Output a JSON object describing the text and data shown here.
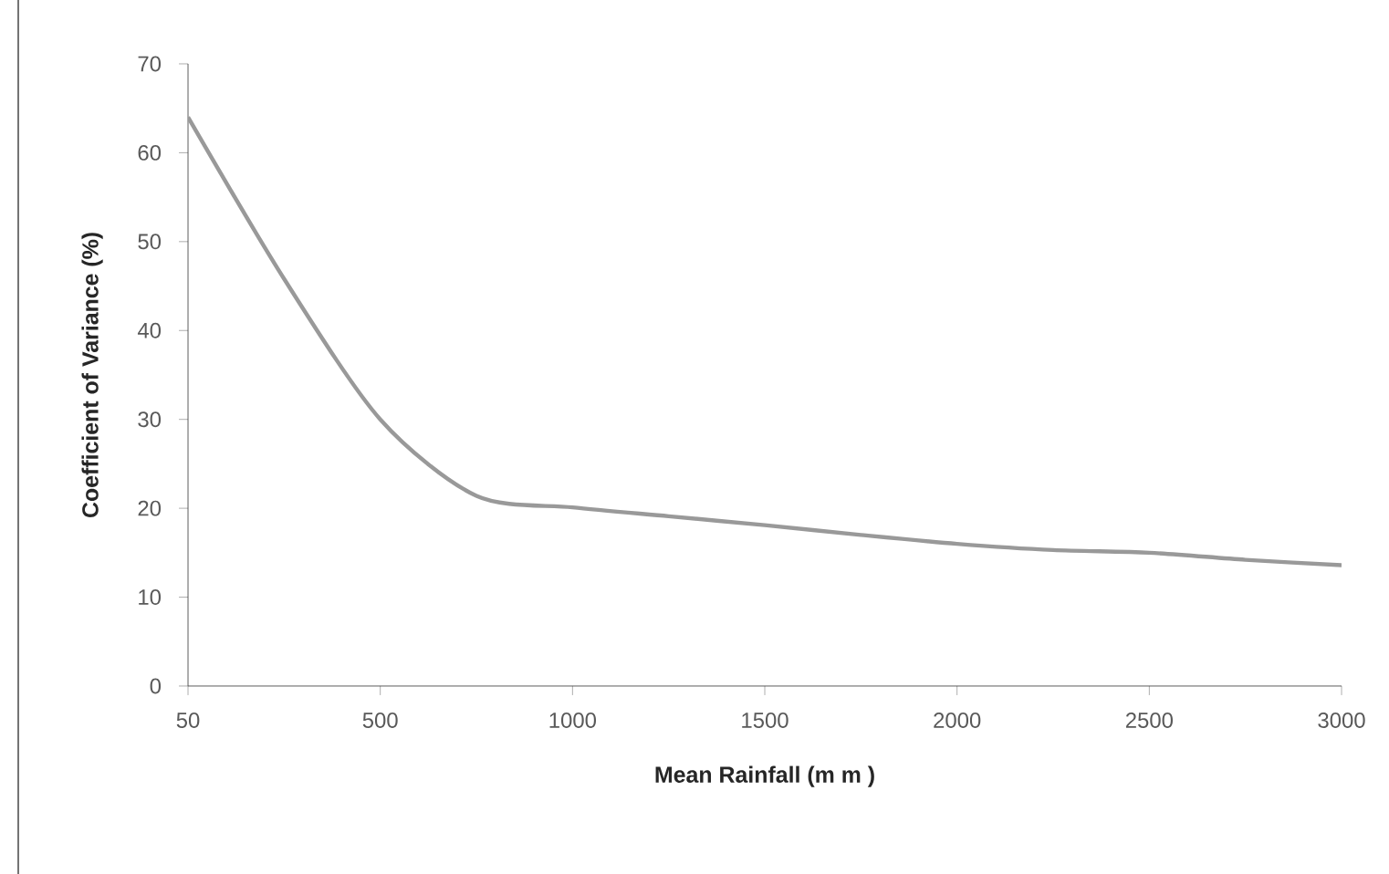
{
  "chart_data": {
    "type": "line",
    "xlabel": "Mean Rainfall (m m )",
    "ylabel": "Coefficient of Variance (%)",
    "categories": [
      "50",
      null,
      "500",
      null,
      "1000",
      null,
      "1500",
      null,
      "2000",
      null,
      "2500",
      null,
      "3000"
    ],
    "series": [
      {
        "color": "#999999",
        "values": [
          64,
          45.8,
          30,
          21.4,
          20.1,
          19.1,
          18.1,
          17.0,
          16.0,
          15.3,
          15.0,
          14.2,
          13.6
        ]
      }
    ],
    "ylim": [
      0,
      70
    ],
    "yticks": [
      0,
      10,
      20,
      30,
      40,
      50,
      60,
      70
    ],
    "grid": false,
    "marker": "none",
    "line_style": "solid"
  }
}
